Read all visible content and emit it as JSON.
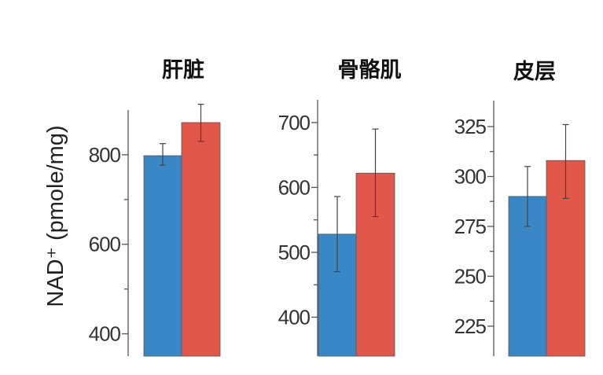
{
  "ylabel": "NAD⁺ (pmole/mg)",
  "colors": {
    "series1": "#3a87c6",
    "series2": "#e2574c"
  },
  "chart_data": [
    {
      "type": "bar",
      "title": "肝脏",
      "ylim": [
        350,
        900
      ],
      "minor_ticks": [
        400,
        500,
        600,
        700,
        800
      ],
      "tick_labels": [
        400,
        600,
        800
      ],
      "values": [
        798,
        872
      ],
      "errors": [
        [
          777,
          825
        ],
        [
          830,
          913
        ]
      ]
    },
    {
      "type": "bar",
      "title": "骨骼肌",
      "ylim": [
        340,
        735
      ],
      "minor_ticks": [
        400,
        450,
        500,
        550,
        600,
        650,
        700
      ],
      "tick_labels": [
        400,
        500,
        600,
        700
      ],
      "values": [
        528,
        622
      ],
      "errors": [
        [
          470,
          586
        ],
        [
          555,
          690
        ]
      ]
    },
    {
      "type": "bar",
      "title": "皮层",
      "ylim": [
        210,
        338
      ],
      "minor_ticks": [
        225,
        237.5,
        250,
        262.5,
        275,
        287.5,
        300,
        312.5,
        325
      ],
      "tick_labels": [
        225,
        250,
        275,
        300,
        325
      ],
      "values": [
        290,
        308
      ],
      "errors": [
        [
          275,
          305
        ],
        [
          289,
          326
        ]
      ]
    }
  ]
}
